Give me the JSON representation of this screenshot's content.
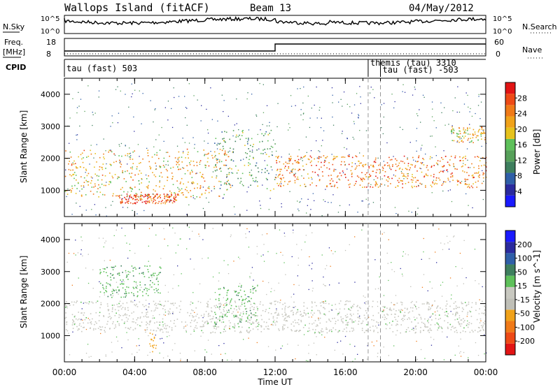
{
  "header": {
    "station": "Wallops Island (fitACF)",
    "beam": "Beam 13",
    "date": "04/May/2012"
  },
  "top_panels": {
    "nsky_label": "N.Sky",
    "nsky_ticks": [
      "10^5",
      "10^0"
    ],
    "nsearch_label": "N.Search",
    "nsearch_ticks": [
      "10^5",
      "10^0"
    ],
    "freq_label": "Freq.",
    "freq_unit": "[MHz]",
    "freq_ticks": [
      "18",
      "8"
    ],
    "nave_label": "Nave",
    "nave_ticks": [
      "60",
      "0"
    ],
    "cpid_label": "CPID",
    "cpid_entries": [
      {
        "text": "tau (fast) 503",
        "start_hour": 0.0
      },
      {
        "text": "themis (tau) 3310",
        "start_hour": 17.3
      },
      {
        "text": "tau (fast) -503",
        "start_hour": 18.0
      }
    ],
    "freq_step_hour": 12.0
  },
  "chart_data": [
    {
      "type": "heatmap",
      "title": "Power",
      "ylabel": "Slant Range [km]",
      "xlabel": "",
      "xlim": [
        0,
        24
      ],
      "ylim": [
        180,
        4500
      ],
      "yticks": [
        "1000",
        "2000",
        "3000",
        "4000"
      ],
      "colorbar_label": "Power [dB]",
      "colorbar_ticks": [
        "4",
        "8",
        "12",
        "16",
        "20",
        "24",
        "28"
      ],
      "colorbar_range": [
        0,
        30
      ],
      "colorbar_colors": [
        "#1a1aff",
        "#2b2b9e",
        "#2f5fa8",
        "#3e7f5e",
        "#57a05a",
        "#5ec05a",
        "#e6c21c",
        "#f0a21a",
        "#f07a18",
        "#ee4a16",
        "#e21414"
      ],
      "features": [
        {
          "t_start": 0.0,
          "t_end": 9.5,
          "range_start": 800,
          "range_end": 2300,
          "level": 20
        },
        {
          "t_start": 3.0,
          "t_end": 6.5,
          "range_start": 600,
          "range_end": 900,
          "level": 26
        },
        {
          "t_start": 8.5,
          "t_end": 12.0,
          "range_start": 1000,
          "range_end": 2900,
          "level": 12
        },
        {
          "t_start": 12.0,
          "t_end": 24.0,
          "range_start": 1100,
          "range_end": 2100,
          "level": 24
        },
        {
          "t_start": 22.0,
          "t_end": 24.0,
          "range_start": 2500,
          "range_end": 3000,
          "level": 20
        }
      ]
    },
    {
      "type": "heatmap",
      "title": "Velocity",
      "ylabel": "Slant Range [km]",
      "xlabel": "Time UT",
      "xlim": [
        0,
        24
      ],
      "ylim": [
        180,
        4500
      ],
      "xticks": [
        "00:00",
        "04:00",
        "08:00",
        "12:00",
        "16:00",
        "20:00",
        "00:00"
      ],
      "yticks": [
        "1000",
        "2000",
        "3000",
        "4000"
      ],
      "colorbar_label": "Velocity [m s^-1]",
      "colorbar_ticks": [
        "-200",
        "-100",
        "-50",
        "-15",
        "15",
        "50",
        "100",
        "200"
      ],
      "colorbar_colors": [
        "#e21414",
        "#ee4a16",
        "#f07a18",
        "#f0a21a",
        "#bfbfb7",
        "#c8c8c0",
        "#5ec05a",
        "#3e7f5e",
        "#2f5fa8",
        "#2b2b9e",
        "#1a1aff"
      ],
      "features": [
        {
          "t_start": 0.0,
          "t_end": 24.0,
          "range_start": 1100,
          "range_end": 2100,
          "velocity": 0
        },
        {
          "t_start": 2.0,
          "t_end": 5.5,
          "range_start": 2200,
          "range_end": 3200,
          "velocity": 60
        },
        {
          "t_start": 8.5,
          "t_end": 11.0,
          "range_start": 1200,
          "range_end": 2600,
          "velocity": 40
        },
        {
          "t_start": 4.8,
          "t_end": 5.2,
          "range_start": 500,
          "range_end": 1100,
          "velocity": -60
        }
      ]
    }
  ]
}
